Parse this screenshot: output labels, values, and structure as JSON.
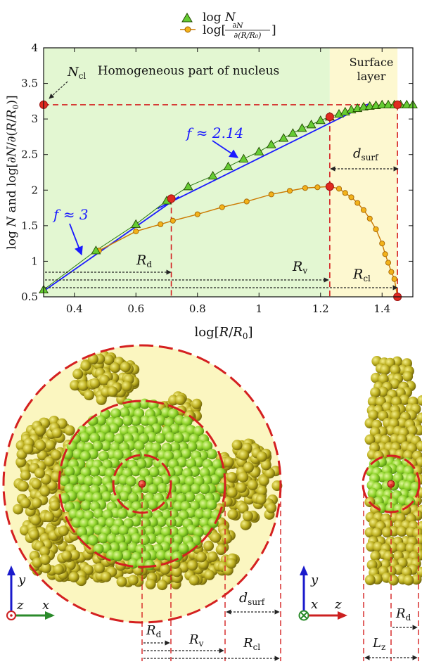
{
  "chart_data": {
    "type": "line",
    "xlabel": "log[R/R₀]",
    "ylabel": "log N and log[∂N/∂(R/R₀)]",
    "xlim": [
      0.3,
      1.5
    ],
    "ylim": [
      0.5,
      4
    ],
    "x_ticks": [
      0.4,
      0.6,
      0.8,
      1,
      1.2,
      1.4
    ],
    "y_ticks": [
      0.5,
      1,
      1.5,
      2,
      2.5,
      3,
      3.5,
      4
    ],
    "legend": {
      "position": "top-center",
      "entries": [
        {
          "label": "log N",
          "marker": "triangle",
          "color": "#66cc33"
        },
        {
          "label": "log[∂N/∂(R/R₀)]",
          "marker": "circle",
          "color": "#e0a800"
        }
      ]
    },
    "regions": [
      {
        "label": "Homogeneous part of nucleus",
        "x_range": [
          0.3,
          1.23
        ],
        "color": "#e3f7d2"
      },
      {
        "label_lines": [
          "Surface",
          "layer"
        ],
        "x_range": [
          1.23,
          1.45
        ],
        "color": "#fdf8d0"
      }
    ],
    "series": [
      {
        "name": "log N",
        "marker": "triangle",
        "x": [
          0.3,
          0.47,
          0.6,
          0.7,
          0.77,
          0.85,
          0.9,
          0.95,
          1.0,
          1.04,
          1.08,
          1.11,
          1.14,
          1.17,
          1.2,
          1.23,
          1.26,
          1.28,
          1.3,
          1.32,
          1.34,
          1.36,
          1.38,
          1.4,
          1.42,
          1.44,
          1.46,
          1.48,
          1.5
        ],
        "y": [
          0.6,
          1.15,
          1.52,
          1.85,
          2.05,
          2.2,
          2.33,
          2.44,
          2.54,
          2.64,
          2.73,
          2.8,
          2.87,
          2.92,
          2.98,
          3.03,
          3.07,
          3.1,
          3.13,
          3.15,
          3.17,
          3.18,
          3.19,
          3.2,
          3.2,
          3.2,
          3.2,
          3.2,
          3.2
        ]
      },
      {
        "name": "log[∂N/∂(R/R₀)]",
        "marker": "circle",
        "x": [
          0.48,
          0.6,
          0.68,
          0.72,
          0.8,
          0.88,
          0.96,
          1.04,
          1.1,
          1.15,
          1.19,
          1.23,
          1.26,
          1.28,
          1.3,
          1.32,
          1.34,
          1.36,
          1.38,
          1.4,
          1.41,
          1.42,
          1.43,
          1.44,
          1.45
        ],
        "y": [
          1.15,
          1.42,
          1.52,
          1.57,
          1.66,
          1.76,
          1.84,
          1.94,
          1.99,
          2.03,
          2.04,
          2.05,
          2.02,
          1.96,
          1.9,
          1.82,
          1.72,
          1.6,
          1.45,
          1.25,
          1.1,
          0.98,
          0.85,
          0.75,
          0.5
        ]
      }
    ],
    "fits": [
      {
        "label": "f ≈ 3",
        "from": [
          0.3,
          0.58
        ],
        "to": [
          0.74,
          1.91
        ]
      },
      {
        "label": "f ≈ 2.14",
        "from": [
          0.67,
          1.74
        ],
        "to": [
          1.36,
          3.22
        ]
      }
    ],
    "key_points": {
      "N_cl": [
        0.3,
        3.2
      ],
      "R_d": [
        0.715,
        1.88
      ],
      "R_v_upper": [
        1.23,
        3.03
      ],
      "R_v_lower": [
        1.23,
        2.05
      ],
      "R_cl_upper": [
        1.45,
        3.2
      ],
      "R_cl_lower": [
        1.45,
        0.5
      ]
    },
    "annotations": {
      "N_cl": "N",
      "N_cl_sub": "cl",
      "d_surf": "d",
      "d_surf_sub": "surf",
      "R_d": "R",
      "R_d_sub": "d",
      "R_v": "R",
      "R_v_sub": "v",
      "R_cl": "R",
      "R_cl_sub": "cl"
    }
  },
  "bottom_panels": {
    "left_axes": {
      "y": "y",
      "z": "z",
      "x": "x"
    },
    "right_axes": {
      "y": "y",
      "x": "x",
      "z": "z"
    },
    "labels": {
      "R": "R",
      "d_sub": "d",
      "v_sub": "v",
      "cl_sub": "cl",
      "d": "d",
      "surf_sub": "surf",
      "L": "L",
      "z_sub": "z"
    },
    "colors": {
      "green_particle": "#8fd32a",
      "yellow_particle": "#bdb020",
      "circle": "#d42020",
      "bg_disk": "#fbf6c0"
    }
  }
}
